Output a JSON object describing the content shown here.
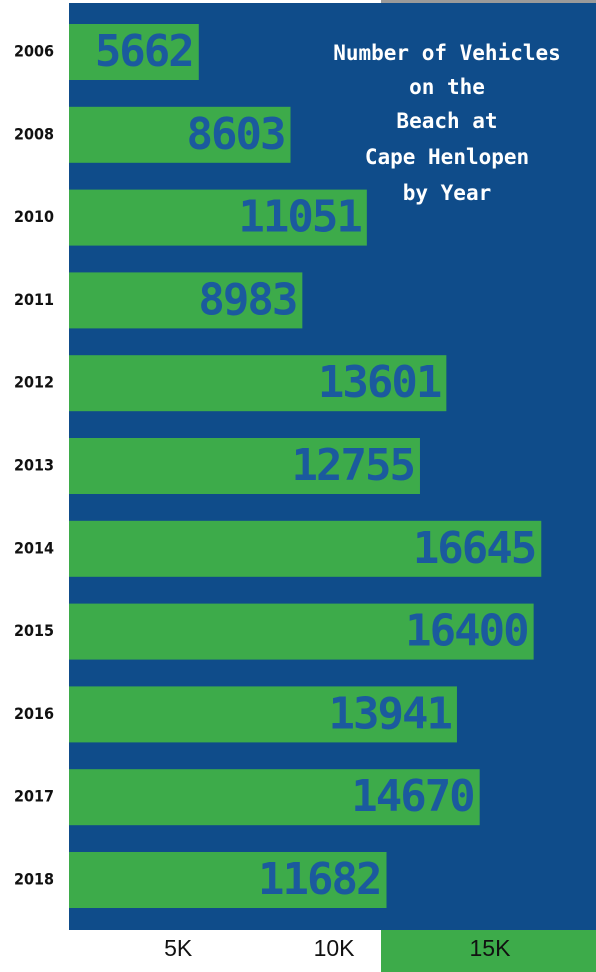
{
  "chart_data": {
    "type": "bar",
    "orientation": "horizontal",
    "title_lines": [
      "Number of Vehicles",
      "on the",
      "Beach at",
      "Cape Henlopen",
      "by Year"
    ],
    "categories": [
      "2006",
      "2008",
      "2010",
      "2011",
      "2012",
      "2013",
      "2014",
      "2015",
      "2016",
      "2017",
      "2018"
    ],
    "values": [
      5662,
      8603,
      11051,
      8983,
      13601,
      12755,
      16645,
      16400,
      13941,
      14670,
      11682
    ],
    "color": "#3dab4a",
    "background": "#0f4c8a",
    "xlim": [
      1500,
      18400
    ],
    "xticks": [
      {
        "value": 5000,
        "label": "5K"
      },
      {
        "value": 10000,
        "label": "10K"
      },
      {
        "value": 15000,
        "label": "15K"
      }
    ]
  }
}
